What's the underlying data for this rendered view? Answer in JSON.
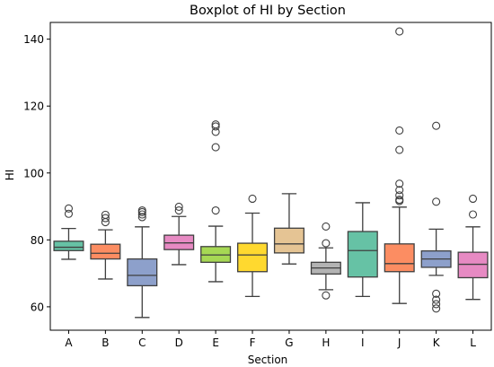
{
  "chart_data": {
    "type": "boxplot",
    "title": "Boxplot of HI by Section",
    "xlabel": "Section",
    "ylabel": "HI",
    "ylim": [
      53,
      145
    ],
    "y_ticks": [
      60,
      80,
      100,
      120,
      140
    ],
    "grid": false,
    "legend": "none",
    "categories": [
      "A",
      "B",
      "C",
      "D",
      "E",
      "F",
      "G",
      "H",
      "I",
      "J",
      "K",
      "L"
    ],
    "colors": [
      "#66c2a5",
      "#fc8d62",
      "#8da0cb",
      "#e78ac3",
      "#a6d854",
      "#ffd92f",
      "#e5c494",
      "#b3b3b3",
      "#66c2a5",
      "#fc8d62",
      "#8da0cb",
      "#e78ac3"
    ],
    "boxes": [
      {
        "category": "A",
        "whisker_low": 74.2,
        "q1": 76.8,
        "median": 77.8,
        "q3": 79.6,
        "whisker_high": 83.4,
        "outliers": [
          87.8,
          89.4
        ]
      },
      {
        "category": "B",
        "whisker_low": 68.3,
        "q1": 74.3,
        "median": 76.0,
        "q3": 78.7,
        "whisker_high": 83.0,
        "outliers": [
          85.3,
          86.5,
          87.5
        ]
      },
      {
        "category": "C",
        "whisker_low": 56.8,
        "q1": 66.3,
        "median": 69.4,
        "q3": 74.3,
        "whisker_high": 83.9,
        "outliers": [
          86.8,
          87.6,
          88.3,
          88.8
        ]
      },
      {
        "category": "D",
        "whisker_low": 72.6,
        "q1": 77.1,
        "median": 79.1,
        "q3": 81.4,
        "whisker_high": 87.0,
        "outliers": [
          88.8,
          89.9
        ]
      },
      {
        "category": "E",
        "whisker_low": 67.5,
        "q1": 73.3,
        "median": 75.5,
        "q3": 78.0,
        "whisker_high": 84.1,
        "outliers": [
          88.8,
          107.7,
          112.3,
          113.9,
          114.5
        ]
      },
      {
        "category": "F",
        "whisker_low": 63.1,
        "q1": 70.5,
        "median": 75.5,
        "q3": 79.0,
        "whisker_high": 88.0,
        "outliers": [
          92.3
        ]
      },
      {
        "category": "G",
        "whisker_low": 72.8,
        "q1": 76.1,
        "median": 78.8,
        "q3": 83.5,
        "whisker_high": 93.8,
        "outliers": []
      },
      {
        "category": "H",
        "whisker_low": 65.1,
        "q1": 69.8,
        "median": 71.6,
        "q3": 73.3,
        "whisker_high": 77.6,
        "outliers": [
          63.4,
          79.0,
          84.0
        ]
      },
      {
        "category": "I",
        "whisker_low": 63.1,
        "q1": 68.9,
        "median": 76.8,
        "q3": 82.5,
        "whisker_high": 91.1,
        "outliers": []
      },
      {
        "category": "J",
        "whisker_low": 61.0,
        "q1": 70.5,
        "median": 72.9,
        "q3": 78.8,
        "whisker_high": 89.8,
        "outliers": [
          91.6,
          92.0,
          93.3,
          94.9,
          96.8,
          106.9,
          112.7,
          142.3
        ]
      },
      {
        "category": "K",
        "whisker_low": 69.4,
        "q1": 71.8,
        "median": 74.3,
        "q3": 76.7,
        "whisker_high": 83.2,
        "outliers": [
          59.5,
          60.8,
          62.1,
          63.9,
          91.4,
          114.1
        ]
      },
      {
        "category": "L",
        "whisker_low": 62.2,
        "q1": 68.7,
        "median": 72.7,
        "q3": 76.3,
        "whisker_high": 83.9,
        "outliers": [
          87.6,
          92.3
        ]
      }
    ]
  }
}
